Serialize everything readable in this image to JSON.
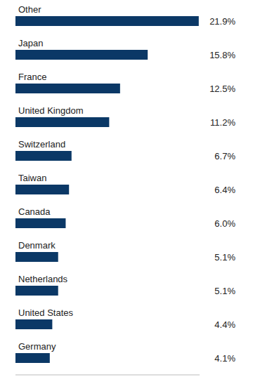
{
  "chart_data": {
    "type": "bar",
    "orientation": "horizontal",
    "categories": [
      "Other",
      "Japan",
      "France",
      "United Kingdom",
      "Switzerland",
      "Taiwan",
      "Canada",
      "Denmark",
      "Netherlands",
      "United States",
      "Germany"
    ],
    "values": [
      21.9,
      15.8,
      12.5,
      11.2,
      6.7,
      6.4,
      6.0,
      5.1,
      5.1,
      4.4,
      4.1
    ],
    "value_labels": [
      "21.9%",
      "15.8%",
      "12.5%",
      "11.2%",
      "6.7%",
      "6.4%",
      "6.0%",
      "5.1%",
      "5.1%",
      "4.4%",
      "4.1%"
    ],
    "data_labels": true,
    "tick_labels": false,
    "xlim": [
      0,
      22
    ],
    "color": "#0b3866",
    "grid": false
  }
}
